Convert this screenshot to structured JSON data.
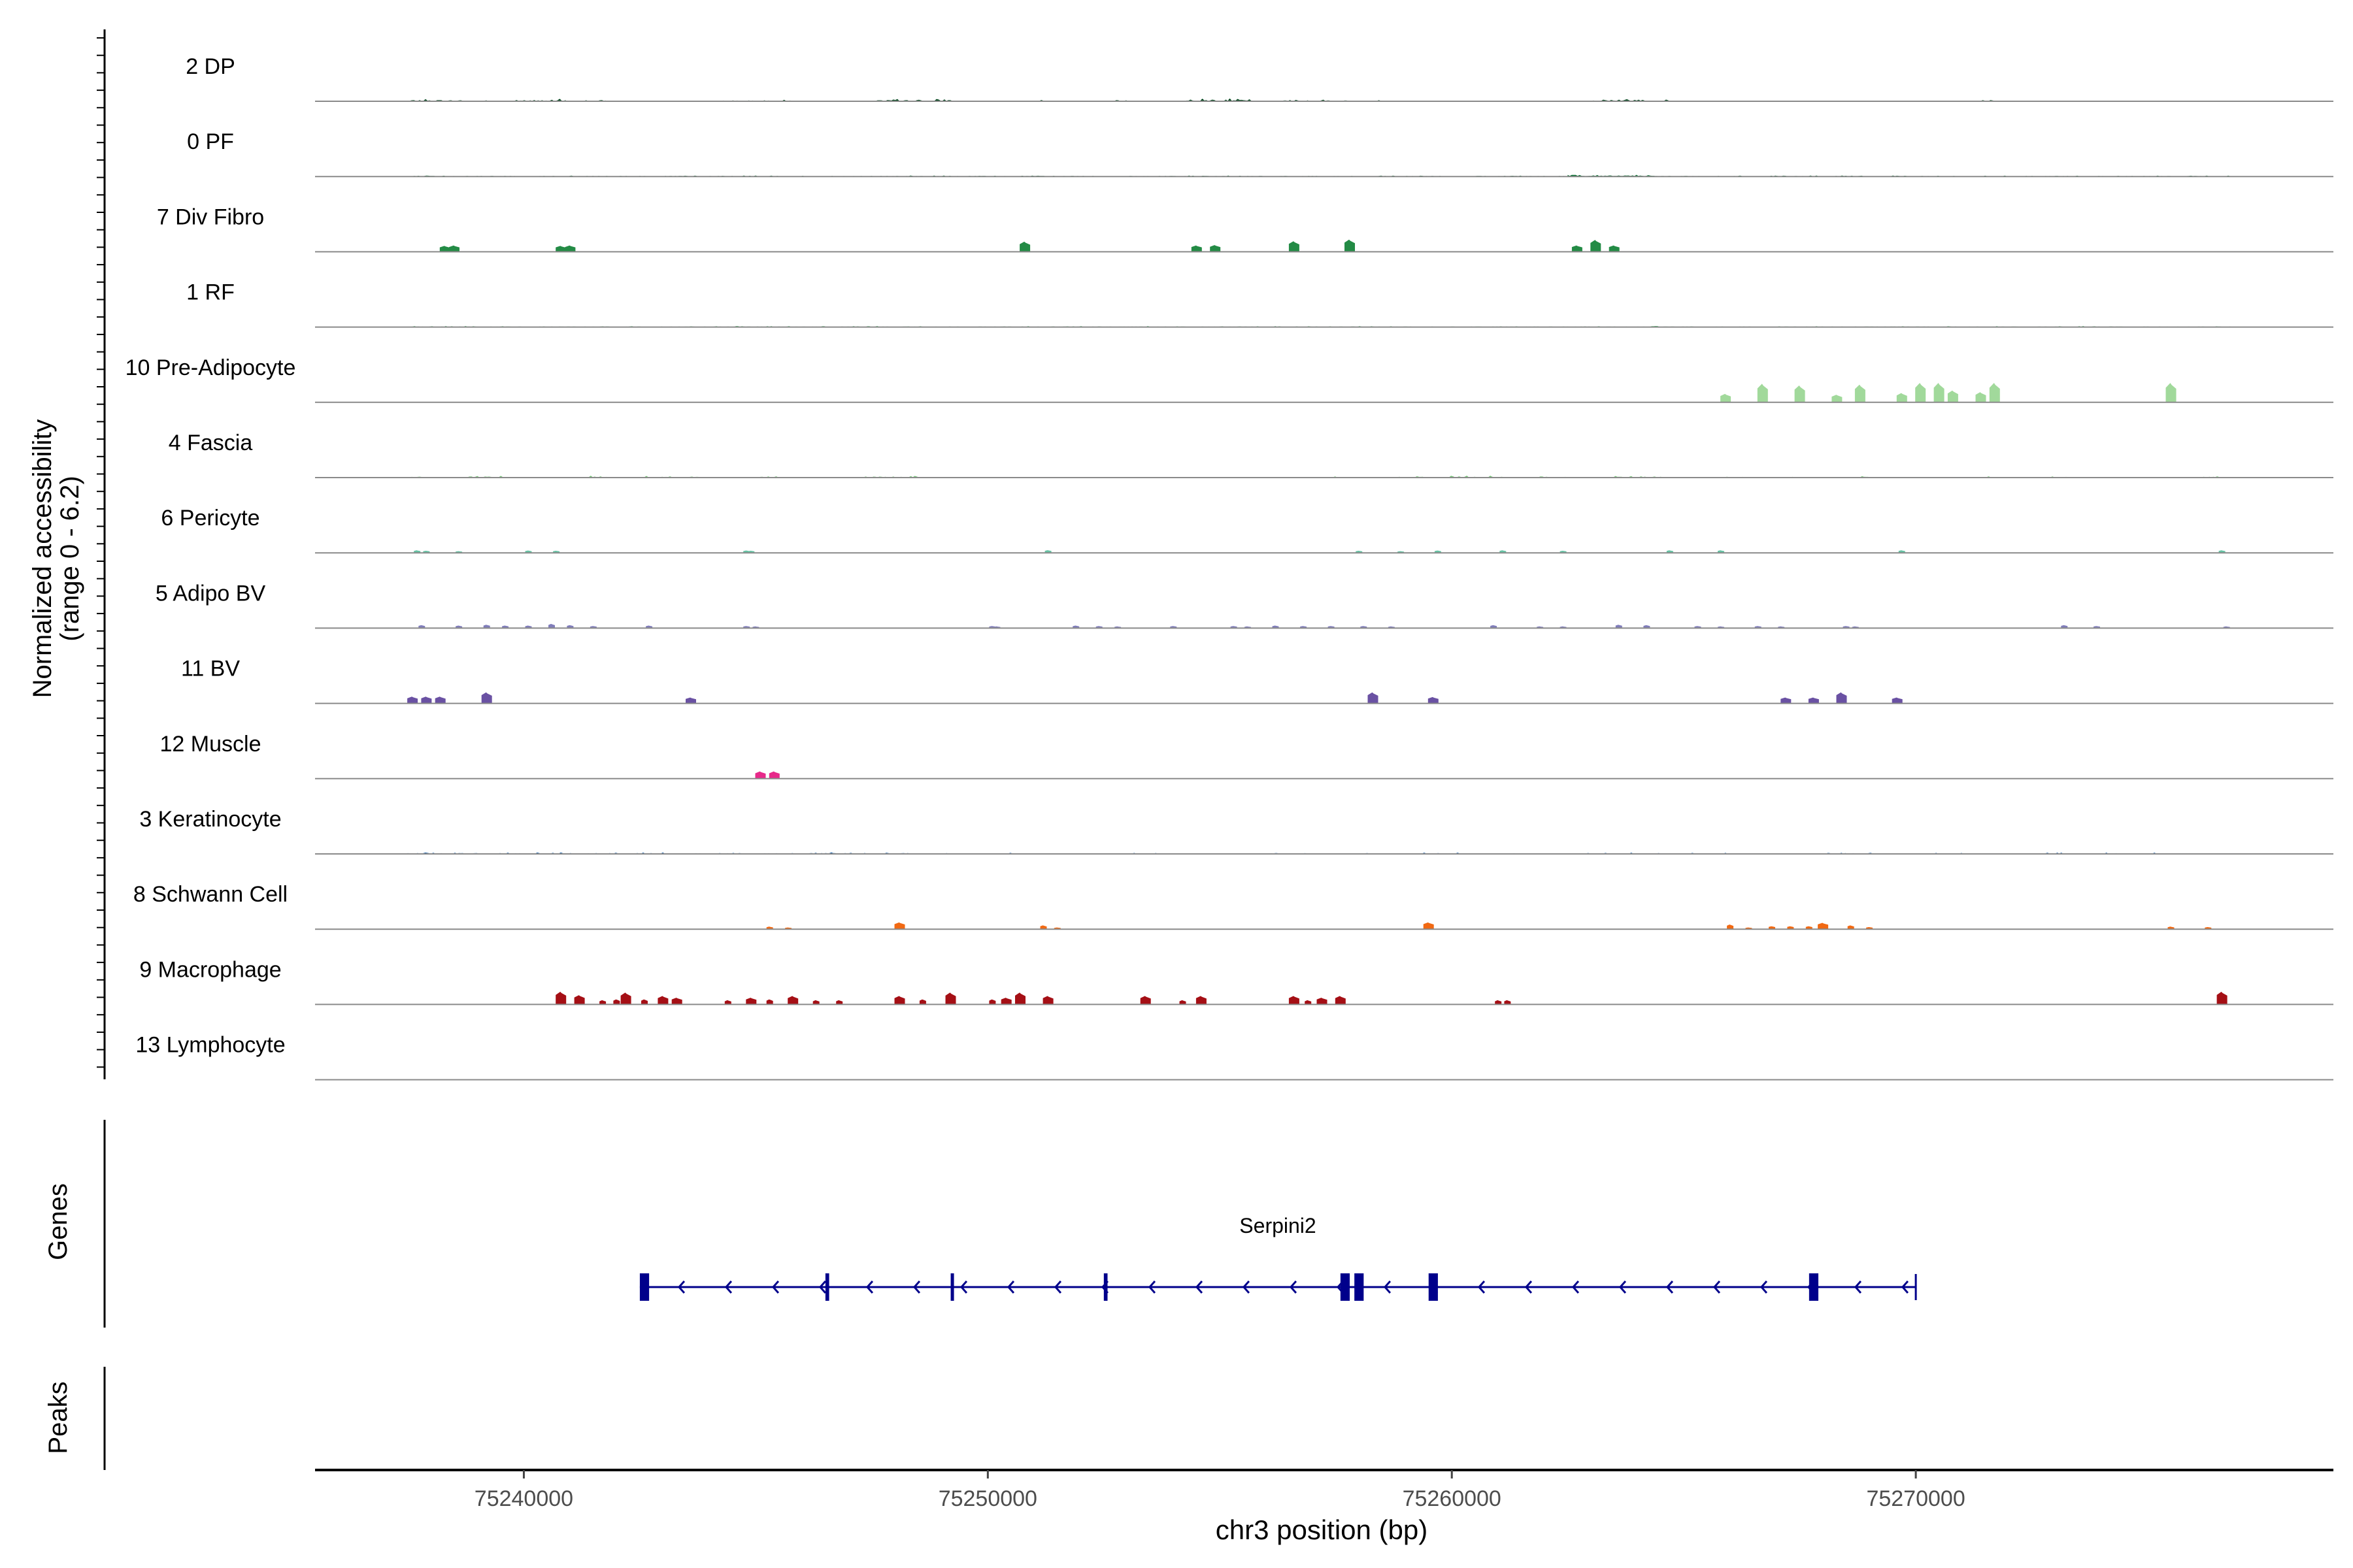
{
  "chart_data": {
    "type": "area",
    "title": "",
    "ylabel": "Normalized accessibility",
    "ylabel_range": "(range 0 - 6.2)",
    "y_range": [
      0,
      6.2
    ],
    "xlabel": "chr3 position (bp)",
    "xlim": [
      75235500,
      75279000
    ],
    "x_ticks": [
      75240000,
      75250000,
      75260000,
      75270000
    ],
    "x_tick_labels": [
      "75240000",
      "75250000",
      "75260000",
      "75270000"
    ],
    "genes_label": "Genes",
    "peaks_label": "Peaks",
    "tracks": [
      {
        "name": "2 DP",
        "color": "#00441b",
        "kind": "dense",
        "regions": [
          [
            75237500,
            75238700,
            0.25
          ],
          [
            75238900,
            75239200,
            0.15
          ],
          [
            75239800,
            75240900,
            0.3
          ],
          [
            75241300,
            75241800,
            0.2
          ],
          [
            75242200,
            75242300,
            0.1
          ],
          [
            75244300,
            75245800,
            0.18
          ],
          [
            75247500,
            75249300,
            0.25
          ],
          [
            75249700,
            75249900,
            0.12
          ],
          [
            75250900,
            75251200,
            0.12
          ],
          [
            75252600,
            75253300,
            0.12
          ],
          [
            75254200,
            75255700,
            0.35
          ],
          [
            75256300,
            75257800,
            0.18
          ],
          [
            75258300,
            75258500,
            0.12
          ],
          [
            75260900,
            75261100,
            0.1
          ],
          [
            75262800,
            75264700,
            0.35
          ],
          [
            75271400,
            75271800,
            0.25
          ],
          [
            75273800,
            75274100,
            0.12
          ],
          [
            75274400,
            75274700,
            0.12
          ],
          [
            75276600,
            75276800,
            0.15
          ]
        ]
      },
      {
        "name": "0 PF",
        "color": "#006d2c",
        "kind": "dense",
        "regions": [
          [
            75237600,
            75276800,
            0.1
          ],
          [
            75262500,
            75264400,
            0.35
          ]
        ]
      },
      {
        "name": "7 Div Fibro",
        "color": "#238b45",
        "kind": "peaks",
        "peaks": [
          [
            75238300,
            0.7
          ],
          [
            75238500,
            0.75
          ],
          [
            75240800,
            0.7
          ],
          [
            75241000,
            0.75
          ],
          [
            75250800,
            1.2
          ],
          [
            75254500,
            0.75
          ],
          [
            75254900,
            0.8
          ],
          [
            75256600,
            1.25
          ],
          [
            75257800,
            1.45
          ],
          [
            75262700,
            0.75
          ],
          [
            75263100,
            1.4
          ],
          [
            75263500,
            0.75
          ]
        ]
      },
      {
        "name": "1 RF",
        "color": "#41ab5d",
        "kind": "dense",
        "regions": [
          [
            75237600,
            75276800,
            0.1
          ]
        ]
      },
      {
        "name": "10 Pre-Adipocyte",
        "color": "#a1d99b",
        "kind": "peaks",
        "peaks": [
          [
            75265900,
            1.0
          ],
          [
            75266700,
            2.2
          ],
          [
            75267500,
            2.0
          ],
          [
            75268300,
            0.9
          ],
          [
            75268800,
            2.1
          ],
          [
            75269700,
            1.1
          ],
          [
            75270100,
            2.3
          ],
          [
            75270500,
            2.3
          ],
          [
            75270800,
            1.4
          ],
          [
            75271400,
            1.2
          ],
          [
            75271700,
            2.3
          ],
          [
            75275500,
            2.3
          ]
        ]
      },
      {
        "name": "4 Fascia",
        "color": "#74c476",
        "kind": "dense",
        "regions": [
          [
            75237500,
            75238000,
            0.2
          ],
          [
            75238700,
            75239600,
            0.25
          ],
          [
            75241400,
            75241800,
            0.2
          ],
          [
            75242600,
            75243200,
            0.25
          ],
          [
            75243500,
            75243800,
            0.15
          ],
          [
            75244200,
            75244400,
            0.1
          ],
          [
            75245100,
            75245600,
            0.25
          ],
          [
            75247200,
            75248600,
            0.2
          ],
          [
            75255900,
            75256100,
            0.1
          ],
          [
            75257400,
            75257600,
            0.12
          ],
          [
            75258100,
            75258300,
            0.1
          ],
          [
            75258700,
            75259400,
            0.15
          ],
          [
            75259900,
            75261100,
            0.2
          ],
          [
            75261700,
            75262100,
            0.15
          ],
          [
            75262400,
            75262600,
            0.12
          ],
          [
            75263400,
            75264600,
            0.2
          ],
          [
            75265800,
            75266300,
            0.15
          ],
          [
            75267300,
            75267600,
            0.12
          ],
          [
            75268800,
            75269900,
            0.15
          ],
          [
            75270400,
            75270700,
            0.12
          ],
          [
            75271400,
            75271800,
            0.12
          ],
          [
            75272900,
            75273300,
            0.12
          ],
          [
            75274700,
            75274900,
            0.1
          ],
          [
            75276200,
            75276700,
            0.15
          ]
        ]
      },
      {
        "name": "6 Pericyte",
        "color": "#66c2a4",
        "kind": "peaks",
        "peaks": [
          [
            75237700,
            0.3
          ],
          [
            75237900,
            0.25
          ],
          [
            75238600,
            0.2
          ],
          [
            75240100,
            0.28
          ],
          [
            75240700,
            0.25
          ],
          [
            75244800,
            0.28
          ],
          [
            75244900,
            0.25
          ],
          [
            75251300,
            0.32
          ],
          [
            75258000,
            0.25
          ],
          [
            75258900,
            0.2
          ],
          [
            75259700,
            0.28
          ],
          [
            75261100,
            0.3
          ],
          [
            75262400,
            0.25
          ],
          [
            75264700,
            0.3
          ],
          [
            75265800,
            0.3
          ],
          [
            75269700,
            0.3
          ],
          [
            75276600,
            0.3
          ]
        ]
      },
      {
        "name": "5 Adipo BV",
        "color": "#807dba",
        "kind": "peaks",
        "peaks": [
          [
            75237800,
            0.35
          ],
          [
            75238600,
            0.3
          ],
          [
            75239200,
            0.4
          ],
          [
            75239600,
            0.3
          ],
          [
            75240100,
            0.3
          ],
          [
            75240600,
            0.5
          ],
          [
            75241000,
            0.35
          ],
          [
            75241500,
            0.25
          ],
          [
            75242700,
            0.3
          ],
          [
            75244800,
            0.25
          ],
          [
            75245000,
            0.2
          ],
          [
            75250100,
            0.25
          ],
          [
            75250200,
            0.2
          ],
          [
            75251900,
            0.3
          ],
          [
            75252400,
            0.25
          ],
          [
            75252800,
            0.2
          ],
          [
            75254000,
            0.25
          ],
          [
            75255300,
            0.25
          ],
          [
            75255600,
            0.2
          ],
          [
            75256200,
            0.3
          ],
          [
            75256800,
            0.25
          ],
          [
            75257400,
            0.25
          ],
          [
            75258100,
            0.25
          ],
          [
            75258700,
            0.2
          ],
          [
            75260900,
            0.35
          ],
          [
            75261900,
            0.2
          ],
          [
            75262400,
            0.2
          ],
          [
            75263600,
            0.4
          ],
          [
            75264200,
            0.35
          ],
          [
            75265300,
            0.25
          ],
          [
            75265800,
            0.2
          ],
          [
            75266600,
            0.25
          ],
          [
            75267100,
            0.2
          ],
          [
            75268500,
            0.25
          ],
          [
            75268700,
            0.2
          ],
          [
            75273200,
            0.35
          ],
          [
            75273900,
            0.25
          ],
          [
            75276700,
            0.2
          ]
        ]
      },
      {
        "name": "11 BV",
        "color": "#6a51a3",
        "kind": "peaks",
        "peaks": [
          [
            75237600,
            0.8
          ],
          [
            75237900,
            0.8
          ],
          [
            75238200,
            0.8
          ],
          [
            75239200,
            1.3
          ],
          [
            75243600,
            0.7
          ],
          [
            75258300,
            1.3
          ],
          [
            75259600,
            0.75
          ],
          [
            75267200,
            0.7
          ],
          [
            75267800,
            0.7
          ],
          [
            75268400,
            1.3
          ],
          [
            75269600,
            0.7
          ]
        ]
      },
      {
        "name": "12 Muscle",
        "color": "#e7298a",
        "kind": "peaks",
        "peaks": [
          [
            75245100,
            0.85
          ],
          [
            75245400,
            0.85
          ]
        ]
      },
      {
        "name": "3 Keratinocyte",
        "color": "#08519c",
        "kind": "dense",
        "regions": [
          [
            75237500,
            75248300,
            0.15
          ],
          [
            75248900,
            75249300,
            0.1
          ],
          [
            75250400,
            75250600,
            0.1
          ],
          [
            75252000,
            75252200,
            0.1
          ],
          [
            75252900,
            75253700,
            0.1
          ],
          [
            75255600,
            75256300,
            0.12
          ],
          [
            75256700,
            75257000,
            0.1
          ],
          [
            75257800,
            75260200,
            0.12
          ],
          [
            75261000,
            75261800,
            0.1
          ],
          [
            75262600,
            75266100,
            0.12
          ],
          [
            75267200,
            75267800,
            0.1
          ],
          [
            75268100,
            75269400,
            0.12
          ],
          [
            75270100,
            75271000,
            0.1
          ],
          [
            75271600,
            75272200,
            0.1
          ],
          [
            75272500,
            75274400,
            0.12
          ],
          [
            75275100,
            75276000,
            0.12
          ]
        ]
      },
      {
        "name": "8 Schwann Cell",
        "color": "#f16913",
        "kind": "peaks",
        "peaks": [
          [
            75245300,
            0.3
          ],
          [
            75245700,
            0.2
          ],
          [
            75248100,
            0.8
          ],
          [
            75251200,
            0.45
          ],
          [
            75251500,
            0.2
          ],
          [
            75259500,
            0.8
          ],
          [
            75266000,
            0.55
          ],
          [
            75266400,
            0.2
          ],
          [
            75266900,
            0.35
          ],
          [
            75267300,
            0.35
          ],
          [
            75267700,
            0.35
          ],
          [
            75268000,
            0.75
          ],
          [
            75268600,
            0.45
          ],
          [
            75269000,
            0.25
          ],
          [
            75275500,
            0.3
          ],
          [
            75276300,
            0.25
          ]
        ]
      },
      {
        "name": "9 Macrophage",
        "color": "#a50f15",
        "kind": "peaks",
        "peaks": [
          [
            75240800,
            1.5
          ],
          [
            75241200,
            1.1
          ],
          [
            75241700,
            0.5
          ],
          [
            75242000,
            0.6
          ],
          [
            75242200,
            1.4
          ],
          [
            75242600,
            0.6
          ],
          [
            75243000,
            1.0
          ],
          [
            75243300,
            0.8
          ],
          [
            75244400,
            0.5
          ],
          [
            75244900,
            0.8
          ],
          [
            75245300,
            0.6
          ],
          [
            75245800,
            1.0
          ],
          [
            75246300,
            0.5
          ],
          [
            75246800,
            0.5
          ],
          [
            75248100,
            1.0
          ],
          [
            75248600,
            0.6
          ],
          [
            75249200,
            1.4
          ],
          [
            75250100,
            0.6
          ],
          [
            75250400,
            0.8
          ],
          [
            75250700,
            1.4
          ],
          [
            75251300,
            1.0
          ],
          [
            75253400,
            1.0
          ],
          [
            75254200,
            0.5
          ],
          [
            75254600,
            1.0
          ],
          [
            75256600,
            1.0
          ],
          [
            75256900,
            0.5
          ],
          [
            75257200,
            0.8
          ],
          [
            75257600,
            1.0
          ],
          [
            75261000,
            0.5
          ],
          [
            75261200,
            0.5
          ],
          [
            75276600,
            1.5
          ]
        ]
      },
      {
        "name": "13 Lymphocyte",
        "color": "#252525",
        "kind": "peaks",
        "peaks": []
      }
    ],
    "gene": {
      "name": "Serpini2",
      "strand": "-",
      "start": 75242500,
      "end": 75270000,
      "color": "#00008b",
      "exons": [
        [
          75242500,
          75242700
        ],
        [
          75246500,
          75246580
        ],
        [
          75249200,
          75249260
        ],
        [
          75252500,
          75252580
        ],
        [
          75257600,
          75257800
        ],
        [
          75257900,
          75258100
        ],
        [
          75259500,
          75259700
        ],
        [
          75267700,
          75267900
        ]
      ]
    }
  }
}
